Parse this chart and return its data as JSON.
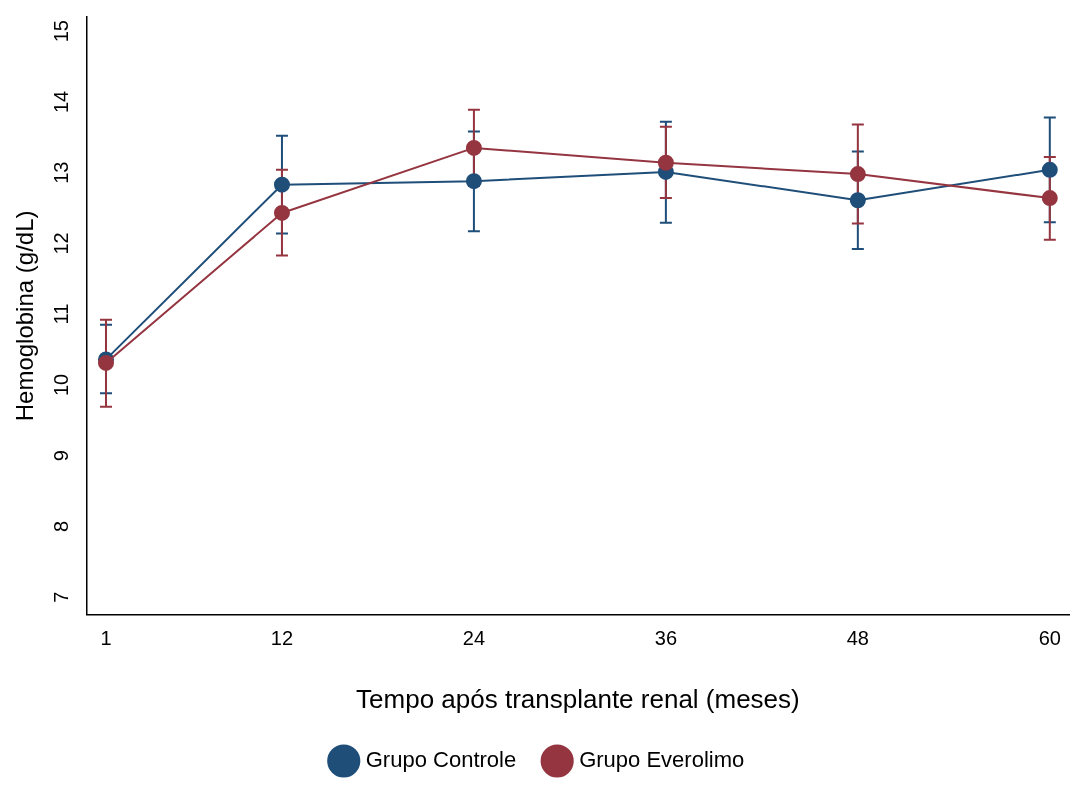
{
  "chart_data": {
    "type": "line",
    "xlabel": "Tempo após transplante renal (meses)",
    "ylabel": "Hemoglobina (g/dL)",
    "x": [
      1,
      12,
      24,
      36,
      48,
      60
    ],
    "xlim": [
      -0.2,
      61.2
    ],
    "xticks": [
      1,
      12,
      24,
      36,
      48,
      60
    ],
    "ylim": [
      6.75,
      15.2
    ],
    "yticks": [
      7,
      8,
      9,
      10,
      11,
      12,
      13,
      14,
      15
    ],
    "grid": false,
    "legend": "bottom",
    "marker": "circle",
    "line_style": "solid",
    "series": [
      {
        "name": "Grupo Controle",
        "color": "#1f4e79",
        "values": [
          10.36,
          12.83,
          12.88,
          13.01,
          12.61,
          13.04
        ],
        "errors": [
          [
            9.88,
            10.85
          ],
          [
            12.14,
            13.52
          ],
          [
            12.17,
            13.58
          ],
          [
            12.29,
            13.72
          ],
          [
            11.92,
            13.3
          ],
          [
            12.3,
            13.78
          ]
        ]
      },
      {
        "name": "Grupo Everolimo",
        "color": "#943540",
        "values": [
          10.31,
          12.43,
          13.35,
          13.14,
          12.98,
          12.64
        ],
        "errors": [
          [
            9.69,
            10.92
          ],
          [
            11.83,
            13.04
          ],
          [
            12.81,
            13.89
          ],
          [
            12.64,
            13.65
          ],
          [
            12.28,
            13.68
          ],
          [
            12.05,
            13.22
          ]
        ]
      }
    ]
  }
}
